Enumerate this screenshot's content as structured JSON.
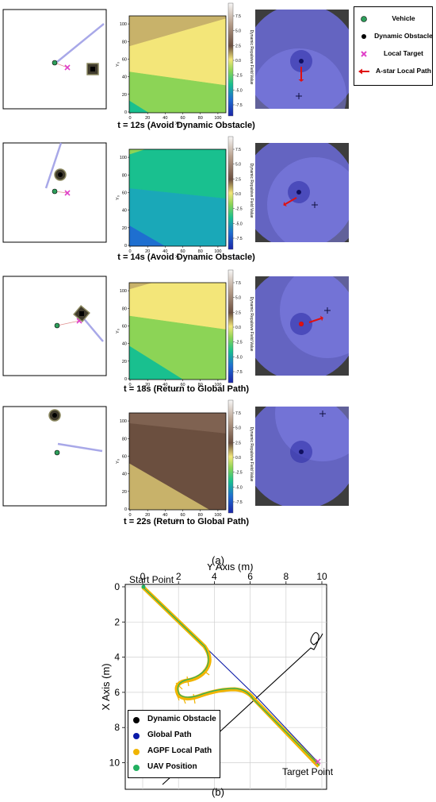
{
  "legend": {
    "items": [
      {
        "label": "Vehicle",
        "color": "#2e9e5b"
      },
      {
        "label": "Dynamic Obstacle",
        "color": "#000000"
      },
      {
        "label": "Local Target",
        "color": "#e040c8"
      },
      {
        "label": "A-star Local Path",
        "color": "#e01010"
      }
    ]
  },
  "heatmap": {
    "x_label": "X₀",
    "y_label": "Y₀",
    "x_ticks": [
      "0",
      "20",
      "40",
      "60",
      "80",
      "100"
    ],
    "y_ticks": [
      "0",
      "20",
      "40",
      "60",
      "80",
      "100"
    ],
    "colorbar_label": "Dynamic Repulsive Field Value",
    "colorbar_ticks": [
      "7.5",
      "5.0",
      "2.5",
      "0.0",
      "-2.5",
      "-5.0",
      "-7.5"
    ]
  },
  "panels": [
    {
      "caption": "t = 12s (Avoid Dynamic Obstacle)"
    },
    {
      "caption": "t = 14s (Avoid Dynamic Obstacle)"
    },
    {
      "caption": "t = 18s (Return to Global Path)"
    },
    {
      "caption": "t = 22s (Return to Global Path)"
    }
  ],
  "label_a": "(a)",
  "label_b": "(b)",
  "plot_b": {
    "x_axis_title": "Y Axis (m)",
    "y_axis_title": "X Axis (m)",
    "x_ticks": [
      "0",
      "2",
      "4",
      "6",
      "8",
      "10"
    ],
    "y_ticks": [
      "0",
      "2",
      "4",
      "6",
      "8",
      "10"
    ],
    "start_label": "Start Point",
    "target_label": "Target Point",
    "legend": [
      {
        "label": "Dynamic Obstacle",
        "color": "#000000"
      },
      {
        "label": "Global Path",
        "color": "#0a1aa8"
      },
      {
        "label": "AGPF Local Path",
        "color": "#f0b400"
      },
      {
        "label": "UAV Position",
        "color": "#22b060"
      }
    ]
  }
}
